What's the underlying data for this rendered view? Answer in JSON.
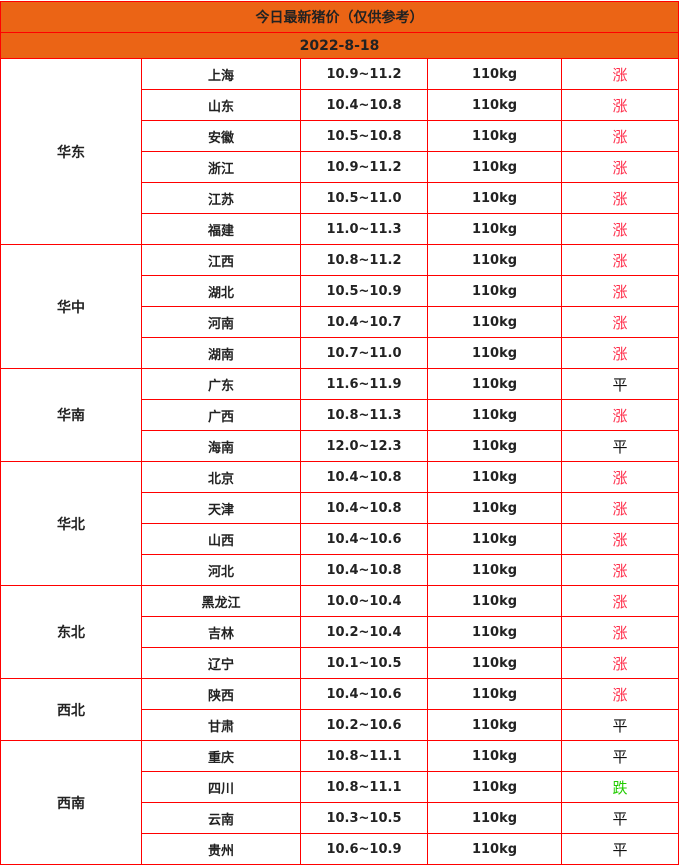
{
  "title": "今日最新猪价（仅供参考）",
  "date": "2022-8-18",
  "colors": {
    "header_bg": "#eb6415",
    "border": "#ff0000",
    "up": "#ff2d4a",
    "down": "#22cc00",
    "flat": "#111111"
  },
  "regions": [
    {
      "name": "华东",
      "rows": [
        {
          "province": "上海",
          "price": "10.9~11.2",
          "weight": "110kg",
          "trend": "涨"
        },
        {
          "province": "山东",
          "price": "10.4~10.8",
          "weight": "110kg",
          "trend": "涨"
        },
        {
          "province": "安徽",
          "price": "10.5~10.8",
          "weight": "110kg",
          "trend": "涨"
        },
        {
          "province": "浙江",
          "price": "10.9~11.2",
          "weight": "110kg",
          "trend": "涨"
        },
        {
          "province": "江苏",
          "price": "10.5~11.0",
          "weight": "110kg",
          "trend": "涨"
        },
        {
          "province": "福建",
          "price": "11.0~11.3",
          "weight": "110kg",
          "trend": "涨"
        }
      ]
    },
    {
      "name": "华中",
      "rows": [
        {
          "province": "江西",
          "price": "10.8~11.2",
          "weight": "110kg",
          "trend": "涨"
        },
        {
          "province": "湖北",
          "price": "10.5~10.9",
          "weight": "110kg",
          "trend": "涨"
        },
        {
          "province": "河南",
          "price": "10.4~10.7",
          "weight": "110kg",
          "trend": "涨"
        },
        {
          "province": "湖南",
          "price": "10.7~11.0",
          "weight": "110kg",
          "trend": "涨"
        }
      ]
    },
    {
      "name": "华南",
      "rows": [
        {
          "province": "广东",
          "price": "11.6~11.9",
          "weight": "110kg",
          "trend": "平"
        },
        {
          "province": "广西",
          "price": "10.8~11.3",
          "weight": "110kg",
          "trend": "涨"
        },
        {
          "province": "海南",
          "price": "12.0~12.3",
          "weight": "110kg",
          "trend": "平"
        }
      ]
    },
    {
      "name": "华北",
      "rows": [
        {
          "province": "北京",
          "price": "10.4~10.8",
          "weight": "110kg",
          "trend": "涨"
        },
        {
          "province": "天津",
          "price": "10.4~10.8",
          "weight": "110kg",
          "trend": "涨"
        },
        {
          "province": "山西",
          "price": "10.4~10.6",
          "weight": "110kg",
          "trend": "涨"
        },
        {
          "province": "河北",
          "price": "10.4~10.8",
          "weight": "110kg",
          "trend": "涨"
        }
      ]
    },
    {
      "name": "东北",
      "rows": [
        {
          "province": "黑龙江",
          "price": "10.0~10.4",
          "weight": "110kg",
          "trend": "涨"
        },
        {
          "province": "吉林",
          "price": "10.2~10.4",
          "weight": "110kg",
          "trend": "涨"
        },
        {
          "province": "辽宁",
          "price": "10.1~10.5",
          "weight": "110kg",
          "trend": "涨"
        }
      ]
    },
    {
      "name": "西北",
      "rows": [
        {
          "province": "陕西",
          "price": "10.4~10.6",
          "weight": "110kg",
          "trend": "涨"
        },
        {
          "province": "甘肃",
          "price": "10.2~10.6",
          "weight": "110kg",
          "trend": "平"
        }
      ]
    },
    {
      "name": "西南",
      "rows": [
        {
          "province": "重庆",
          "price": "10.8~11.1",
          "weight": "110kg",
          "trend": "平"
        },
        {
          "province": "四川",
          "price": "10.8~11.1",
          "weight": "110kg",
          "trend": "跌"
        },
        {
          "province": "云南",
          "price": "10.3~10.5",
          "weight": "110kg",
          "trend": "平"
        },
        {
          "province": "贵州",
          "price": "10.6~10.9",
          "weight": "110kg",
          "trend": "平"
        }
      ]
    }
  ]
}
